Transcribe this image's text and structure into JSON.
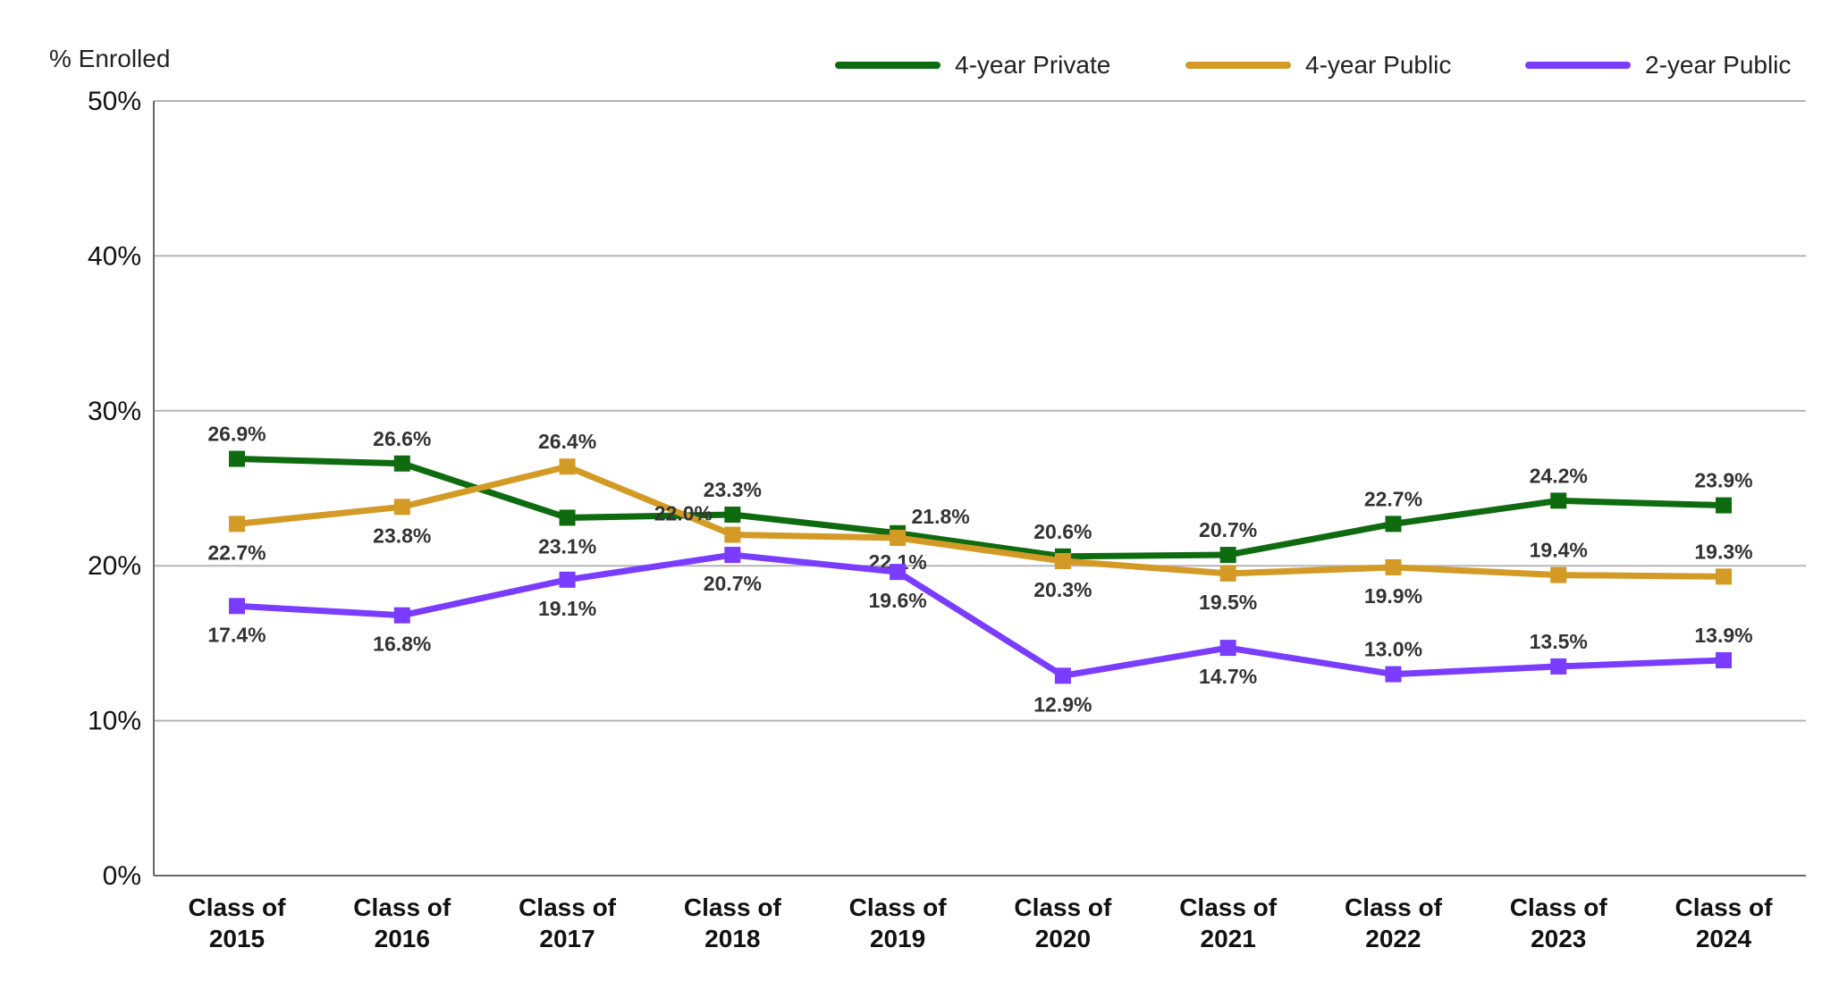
{
  "chart_data": {
    "type": "line",
    "ylabel": "% Enrolled",
    "ylim": [
      0,
      50
    ],
    "yticks": [
      0,
      10,
      20,
      30,
      40,
      50
    ],
    "ytick_labels": [
      "0%",
      "10%",
      "20%",
      "30%",
      "40%",
      "50%"
    ],
    "grid": true,
    "legend_position": "top-right",
    "categories": [
      [
        "Class of",
        "2015"
      ],
      [
        "Class of",
        "2016"
      ],
      [
        "Class of",
        "2017"
      ],
      [
        "Class of",
        "2018"
      ],
      [
        "Class of",
        "2019"
      ],
      [
        "Class of",
        "2020"
      ],
      [
        "Class of",
        "2021"
      ],
      [
        "Class of",
        "2022"
      ],
      [
        "Class of",
        "2023"
      ],
      [
        "Class of",
        "2024"
      ]
    ],
    "series": [
      {
        "name": "4-year Private",
        "color": "#0f6b0f",
        "values": [
          26.9,
          26.6,
          23.1,
          23.3,
          22.1,
          20.6,
          20.7,
          22.7,
          24.2,
          23.9
        ],
        "labels": [
          "26.9%",
          "26.6%",
          "23.1%",
          "23.3%",
          "22.1%",
          "20.6%",
          "20.7%",
          "22.7%",
          "24.2%",
          "23.9%"
        ],
        "label_side": [
          "above",
          "above",
          "below",
          "above",
          "below",
          "above",
          "above",
          "above",
          "above",
          "above"
        ]
      },
      {
        "name": "4-year Public",
        "color": "#d39a25",
        "values": [
          22.7,
          23.8,
          26.4,
          22.0,
          21.8,
          20.3,
          19.5,
          19.9,
          19.4,
          19.3
        ],
        "labels": [
          "22.7%",
          "23.8%",
          "26.4%",
          "22.0%",
          "21.8%",
          "20.3%",
          "19.5%",
          "19.9%",
          "19.4%",
          "19.3%"
        ],
        "label_side": [
          "below",
          "below",
          "above",
          "above-left",
          "above-right",
          "below",
          "below",
          "below",
          "above",
          "above"
        ]
      },
      {
        "name": "2-year Public",
        "color": "#7a3cff",
        "values": [
          17.4,
          16.8,
          19.1,
          20.7,
          19.6,
          12.9,
          14.7,
          13.0,
          13.5,
          13.9
        ],
        "labels": [
          "17.4%",
          "16.8%",
          "19.1%",
          "20.7%",
          "19.6%",
          "12.9%",
          "14.7%",
          "13.0%",
          "13.5%",
          "13.9%"
        ],
        "label_side": [
          "below",
          "below",
          "below",
          "below",
          "below",
          "below",
          "below",
          "above",
          "above",
          "above"
        ]
      }
    ]
  }
}
